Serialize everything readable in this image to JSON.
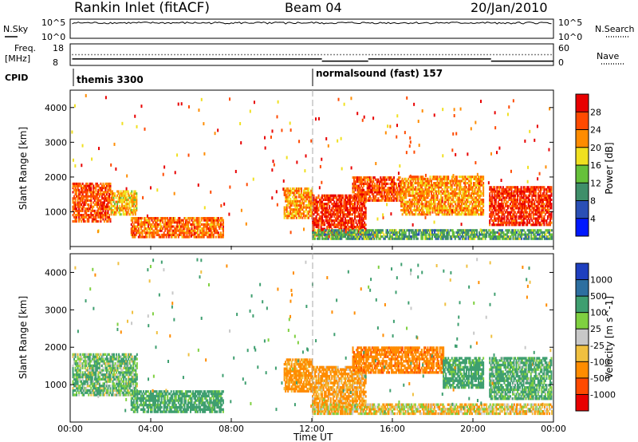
{
  "header": {
    "station": "Rankin Inlet (fitACF)",
    "beam": "Beam 04",
    "date": "20/Jan/2010"
  },
  "top_panels": {
    "nsky_label": "N.Sky",
    "nsky_ticks": [
      "10^5",
      "10^0"
    ],
    "nsearch_label": "N.Search",
    "nsearch_ticks": [
      "10^5",
      "10^0"
    ],
    "freq_label_1": "Freq.",
    "freq_label_2": "[MHz]",
    "freq_ticks": [
      "18",
      "8"
    ],
    "nave_label": "Nave",
    "nave_ticks": [
      "60",
      "0"
    ],
    "cpid_label": "CPID",
    "cpid_segments": [
      {
        "label": "themis 3300",
        "start_h": 0
      },
      {
        "label": "normalsound (fast) 157",
        "start_h": 12
      }
    ]
  },
  "panels": {
    "y_label": "Slant Range [km]",
    "y_ticks": [
      "4000",
      "3000",
      "2000",
      "1000"
    ],
    "x_ticks": [
      "00:00",
      "04:00",
      "08:00",
      "12:00",
      "16:00",
      "20:00",
      "00:00"
    ],
    "x_label": "Time UT"
  },
  "power_scale": {
    "label": "Power [dB]",
    "ticks": [
      "28",
      "24",
      "20",
      "16",
      "12",
      "8",
      "4"
    ],
    "colors": [
      "#0018ff",
      "#2a4fb5",
      "#3f8f6a",
      "#66c13a",
      "#f0e020",
      "#ff8c00",
      "#ff4a00",
      "#e80000"
    ]
  },
  "velocity_scale": {
    "label": "Velocity [m s^-1]",
    "ticks": [
      "1000",
      "500",
      "100",
      "25",
      "-25",
      "-100",
      "-500",
      "-1000"
    ],
    "colors": [
      "#1f3fbf",
      "#2d6fa0",
      "#3f9f70",
      "#7fd040",
      "#c8c8c8",
      "#f0c040",
      "#ff8c00",
      "#ff4a00",
      "#e80000"
    ]
  },
  "chart_data": {
    "type": "heatmap",
    "x_unit": "hours UT",
    "xlim": [
      0,
      24
    ],
    "ylim": [
      0,
      4500
    ],
    "grid": false,
    "series": [
      {
        "name": "Power [dB]",
        "regions": [
          {
            "t0": 0.1,
            "t1": 2.0,
            "r0": 700,
            "r1": 1800,
            "v": 26
          },
          {
            "t0": 2.0,
            "t1": 3.3,
            "r0": 900,
            "r1": 1600,
            "v": 20
          },
          {
            "t0": 3.0,
            "t1": 7.6,
            "r0": 250,
            "r1": 800,
            "v": 24
          },
          {
            "t0": 10.6,
            "t1": 12.0,
            "r0": 800,
            "r1": 1700,
            "v": 22
          },
          {
            "t0": 12.0,
            "t1": 14.7,
            "r0": 300,
            "r1": 1500,
            "v": 28
          },
          {
            "t0": 14.0,
            "t1": 16.4,
            "r0": 1300,
            "r1": 2000,
            "v": 26
          },
          {
            "t0": 16.4,
            "t1": 20.5,
            "r0": 900,
            "r1": 2000,
            "v": 22
          },
          {
            "t0": 20.8,
            "t1": 23.9,
            "r0": 600,
            "r1": 1700,
            "v": 28
          },
          {
            "t0": 12.0,
            "t1": 23.9,
            "r0": 200,
            "r1": 500,
            "v": 12
          }
        ]
      },
      {
        "name": "Velocity [m s^-1]",
        "regions": [
          {
            "t0": 0.1,
            "t1": 3.3,
            "r0": 700,
            "r1": 1800,
            "v": 100
          },
          {
            "t0": 3.0,
            "t1": 7.6,
            "r0": 250,
            "r1": 800,
            "v": 200
          },
          {
            "t0": 10.6,
            "t1": 12.0,
            "r0": 800,
            "r1": 1700,
            "v": -200
          },
          {
            "t0": 12.0,
            "t1": 14.7,
            "r0": 300,
            "r1": 1500,
            "v": -150
          },
          {
            "t0": 14.0,
            "t1": 18.5,
            "r0": 1300,
            "r1": 2000,
            "v": -400
          },
          {
            "t0": 18.5,
            "t1": 20.5,
            "r0": 900,
            "r1": 1700,
            "v": 200
          },
          {
            "t0": 20.8,
            "t1": 23.9,
            "r0": 600,
            "r1": 1700,
            "v": 150
          },
          {
            "t0": 12.0,
            "t1": 23.9,
            "r0": 200,
            "r1": 500,
            "v": -50
          }
        ]
      }
    ],
    "nsky": {
      "level": 0.8,
      "noise": 0.1
    },
    "frequency": {
      "segments": [
        {
          "t0": 0.1,
          "t1": 12.5,
          "v": 11
        },
        {
          "t0": 12.5,
          "t1": 14.8,
          "v": 10
        },
        {
          "t0": 14.8,
          "t1": 20.9,
          "v": 11
        },
        {
          "t0": 20.9,
          "t1": 24,
          "v": 10
        }
      ]
    },
    "nave": {
      "level": 0.5
    }
  }
}
